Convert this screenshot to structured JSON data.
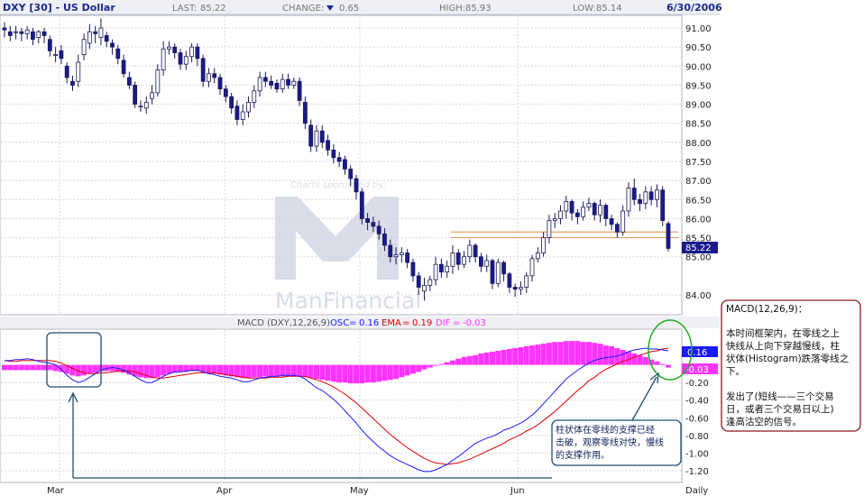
{
  "header": {
    "title": "DXY [30] - US Dollar",
    "last_label": "LAST:",
    "last_value": "85.22",
    "change_label": "CHANGE:",
    "change_value": "0.65",
    "high_label": "HIGH:",
    "high_value": "85.93",
    "low_label": "LOW:",
    "low_value": "85.14",
    "date": "6/30/2006"
  },
  "colors": {
    "up_candle": "#ffffff",
    "down_candle": "#1a1a8c",
    "histogram": "#ff33ff",
    "macd_line": "#1a1aff",
    "signal_line": "#dd0000",
    "support_line": "#e0a060",
    "note_border": "#8b1a1a",
    "callout_border": "#1f4e6e",
    "circle": "#22aa22"
  },
  "watermark": {
    "line1": "Charts sponsored by:",
    "line2": "ManFinancial"
  },
  "chart_data": [
    {
      "type": "candlestick",
      "title": "DXY [30] - US Dollar",
      "ylim": [
        83.6,
        91.35
      ],
      "y_ticks": [
        "91.00",
        "90.50",
        "90.00",
        "89.50",
        "89.00",
        "88.50",
        "88.00",
        "87.50",
        "87.00",
        "86.50",
        "86.00",
        "85.50",
        "85.00",
        "84.00"
      ],
      "x_labels": [
        "Mar",
        "Apr",
        "May",
        "Jun",
        "Daily"
      ],
      "last_price_label": "85.22",
      "support_levels": [
        85.65,
        85.5
      ],
      "close": [
        90.95,
        90.8,
        90.9,
        90.85,
        90.95,
        90.7,
        90.9,
        90.8,
        90.4,
        90.3,
        90.2,
        89.7,
        89.5,
        90.1,
        90.7,
        90.9,
        90.85,
        91.0,
        90.65,
        90.5,
        90.2,
        89.8,
        89.5,
        89.0,
        88.95,
        89.05,
        89.3,
        89.9,
        90.45,
        90.5,
        90.35,
        90.05,
        90.25,
        90.5,
        90.2,
        89.6,
        89.8,
        89.7,
        89.4,
        89.2,
        88.9,
        88.6,
        88.8,
        89.05,
        89.35,
        89.7,
        89.6,
        89.5,
        89.4,
        89.65,
        89.5,
        89.6,
        89.1,
        88.5,
        87.9,
        88.3,
        88.0,
        87.8,
        87.6,
        87.5,
        87.3,
        87.05,
        86.7,
        86.0,
        85.9,
        85.8,
        85.6,
        85.3,
        85.0,
        85.05,
        85.1,
        84.85,
        84.5,
        84.2,
        84.25,
        84.4,
        84.8,
        84.6,
        84.75,
        85.1,
        84.8,
        85.0,
        85.3,
        85.0,
        84.75,
        84.9,
        84.3,
        84.85,
        84.55,
        84.2,
        84.15,
        84.2,
        84.5,
        84.95,
        85.1,
        85.5,
        85.95,
        86.0,
        86.2,
        86.45,
        86.15,
        86.05,
        86.3,
        86.4,
        86.1,
        86.35,
        86.0,
        85.85,
        85.65,
        86.2,
        86.8,
        86.5,
        86.4,
        86.7,
        86.5,
        86.75,
        85.95,
        85.22
      ],
      "open": [
        91.0,
        90.9,
        90.9,
        90.9,
        90.85,
        90.9,
        90.75,
        90.9,
        90.7,
        90.3,
        90.4,
        90.0,
        89.6,
        89.6,
        90.3,
        90.6,
        90.9,
        90.75,
        90.8,
        90.6,
        90.45,
        90.15,
        89.7,
        89.5,
        88.95,
        88.9,
        89.15,
        89.3,
        89.9,
        90.45,
        90.5,
        90.35,
        90.05,
        90.25,
        90.5,
        90.2,
        89.6,
        89.8,
        89.7,
        89.4,
        89.2,
        88.95,
        88.6,
        88.8,
        89.05,
        89.35,
        89.7,
        89.6,
        89.55,
        89.4,
        89.65,
        89.5,
        89.6,
        89.05,
        88.45,
        87.9,
        88.3,
        88.05,
        87.8,
        87.6,
        87.55,
        87.3,
        87.05,
        86.7,
        86.0,
        85.9,
        85.8,
        85.6,
        85.3,
        85.0,
        85.05,
        85.1,
        84.85,
        84.5,
        84.1,
        84.25,
        84.4,
        84.8,
        84.6,
        84.75,
        85.1,
        84.8,
        85.0,
        85.3,
        85.0,
        84.75,
        84.9,
        84.3,
        84.85,
        84.55,
        84.2,
        84.15,
        84.2,
        84.5,
        84.95,
        85.1,
        85.5,
        85.95,
        86.0,
        86.2,
        86.45,
        86.15,
        86.05,
        86.3,
        86.4,
        86.1,
        86.35,
        86.0,
        85.85,
        85.65,
        86.2,
        86.8,
        86.5,
        86.4,
        86.7,
        86.5,
        86.75,
        85.87
      ],
      "high": [
        91.15,
        91.05,
        91.05,
        91.0,
        91.05,
        91.0,
        90.95,
        91.0,
        90.8,
        90.5,
        90.55,
        90.1,
        89.75,
        90.3,
        90.85,
        91.1,
        91.05,
        91.25,
        90.9,
        90.7,
        90.55,
        90.3,
        89.85,
        89.6,
        89.1,
        89.2,
        89.5,
        90.05,
        90.65,
        90.65,
        90.6,
        90.45,
        90.4,
        90.6,
        90.6,
        90.3,
        89.95,
        89.95,
        89.8,
        89.5,
        89.3,
        89.1,
        89.0,
        89.2,
        89.5,
        89.85,
        89.85,
        89.75,
        89.65,
        89.8,
        89.8,
        89.7,
        89.7,
        89.2,
        88.6,
        88.45,
        88.45,
        88.2,
        87.95,
        87.75,
        87.65,
        87.4,
        87.15,
        86.8,
        86.15,
        86.05,
        85.95,
        85.75,
        85.45,
        85.25,
        85.25,
        85.2,
        84.95,
        84.6,
        84.45,
        84.5,
        85.0,
        84.95,
        84.9,
        85.3,
        85.2,
        85.15,
        85.45,
        85.35,
        85.1,
        85.05,
        84.95,
        84.95,
        84.9,
        84.6,
        84.3,
        84.35,
        84.6,
        85.05,
        85.25,
        85.65,
        86.1,
        86.15,
        86.35,
        86.6,
        86.5,
        86.25,
        86.45,
        86.55,
        86.45,
        86.5,
        86.4,
        86.1,
        85.9,
        86.35,
        86.95,
        87.05,
        86.65,
        86.85,
        86.85,
        86.9,
        86.85,
        85.93
      ],
      "low": [
        90.75,
        90.65,
        90.7,
        90.65,
        90.7,
        90.55,
        90.6,
        90.6,
        90.25,
        90.1,
        90.05,
        89.55,
        89.35,
        89.45,
        90.15,
        90.45,
        90.6,
        90.55,
        90.5,
        90.3,
        90.05,
        89.7,
        89.4,
        88.9,
        88.8,
        88.75,
        89.0,
        89.2,
        89.75,
        90.3,
        90.2,
        89.9,
        89.9,
        90.1,
        90.0,
        89.45,
        89.45,
        89.55,
        89.25,
        89.05,
        88.75,
        88.45,
        88.45,
        88.65,
        88.9,
        89.2,
        89.45,
        89.4,
        89.3,
        89.3,
        89.4,
        89.4,
        88.95,
        88.35,
        87.75,
        87.75,
        87.85,
        87.65,
        87.45,
        87.35,
        87.15,
        86.85,
        86.5,
        85.85,
        85.7,
        85.65,
        85.45,
        85.15,
        84.85,
        84.8,
        84.85,
        84.7,
        84.35,
        84.0,
        83.85,
        84.1,
        84.25,
        84.45,
        84.45,
        84.55,
        84.65,
        84.7,
        84.85,
        84.85,
        84.6,
        84.6,
        84.15,
        84.2,
        84.35,
        84.05,
        83.95,
        84.0,
        84.05,
        84.35,
        84.85,
        85.0,
        85.35,
        85.75,
        85.85,
        86.0,
        85.95,
        85.85,
        85.95,
        86.2,
        85.95,
        85.9,
        85.8,
        85.7,
        85.5,
        85.55,
        86.05,
        86.35,
        86.2,
        86.25,
        86.35,
        86.3,
        85.8,
        85.14
      ]
    },
    {
      "type": "macd",
      "title": "MACD (DXY,12,26,9)",
      "legend": [
        {
          "name": "OSC",
          "value": "0.16",
          "color": "#1a1aff"
        },
        {
          "name": "EMA",
          "value": "0.19",
          "color": "#dd0000"
        },
        {
          "name": "DIF",
          "value": "-0.03",
          "color": "#ff33ff"
        }
      ],
      "ylim": [
        -1.3,
        0.27
      ],
      "y_ticks": [
        "-0.20",
        "-0.40",
        "-0.60",
        "-0.80",
        "-1.00",
        "-1.20"
      ],
      "value_labels": {
        "osc": "0.16",
        "dif": "-0.03"
      },
      "macd": [
        0.05,
        0.05,
        0.06,
        0.06,
        0.07,
        0.06,
        0.04,
        0.03,
        0.02,
        0.0,
        -0.05,
        -0.12,
        -0.17,
        -0.2,
        -0.18,
        -0.14,
        -0.1,
        -0.06,
        -0.04,
        -0.03,
        -0.04,
        -0.06,
        -0.09,
        -0.13,
        -0.17,
        -0.2,
        -0.2,
        -0.17,
        -0.13,
        -0.1,
        -0.08,
        -0.08,
        -0.07,
        -0.06,
        -0.06,
        -0.08,
        -0.1,
        -0.11,
        -0.13,
        -0.14,
        -0.15,
        -0.17,
        -0.19,
        -0.19,
        -0.17,
        -0.15,
        -0.14,
        -0.13,
        -0.13,
        -0.12,
        -0.12,
        -0.12,
        -0.13,
        -0.16,
        -0.21,
        -0.26,
        -0.29,
        -0.34,
        -0.39,
        -0.45,
        -0.52,
        -0.59,
        -0.66,
        -0.74,
        -0.81,
        -0.87,
        -0.93,
        -0.98,
        -1.03,
        -1.07,
        -1.1,
        -1.13,
        -1.16,
        -1.19,
        -1.21,
        -1.21,
        -1.19,
        -1.16,
        -1.13,
        -1.08,
        -1.04,
        -0.99,
        -0.94,
        -0.89,
        -0.86,
        -0.83,
        -0.81,
        -0.78,
        -0.74,
        -0.72,
        -0.69,
        -0.66,
        -0.62,
        -0.57,
        -0.51,
        -0.44,
        -0.37,
        -0.3,
        -0.23,
        -0.16,
        -0.11,
        -0.06,
        -0.02,
        0.02,
        0.05,
        0.07,
        0.08,
        0.09,
        0.1,
        0.12,
        0.15,
        0.17,
        0.18,
        0.19,
        0.18,
        0.18,
        0.17,
        0.16
      ],
      "signal": [
        0.05,
        0.04,
        0.04,
        0.05,
        0.05,
        0.05,
        0.05,
        0.05,
        0.05,
        0.04,
        0.02,
        -0.01,
        -0.04,
        -0.07,
        -0.09,
        -0.1,
        -0.1,
        -0.09,
        -0.09,
        -0.08,
        -0.07,
        -0.07,
        -0.07,
        -0.08,
        -0.1,
        -0.12,
        -0.14,
        -0.15,
        -0.15,
        -0.14,
        -0.13,
        -0.12,
        -0.11,
        -0.1,
        -0.09,
        -0.09,
        -0.09,
        -0.09,
        -0.1,
        -0.11,
        -0.12,
        -0.13,
        -0.14,
        -0.15,
        -0.15,
        -0.15,
        -0.15,
        -0.14,
        -0.14,
        -0.14,
        -0.13,
        -0.13,
        -0.13,
        -0.13,
        -0.15,
        -0.17,
        -0.19,
        -0.22,
        -0.25,
        -0.29,
        -0.33,
        -0.38,
        -0.43,
        -0.49,
        -0.55,
        -0.61,
        -0.67,
        -0.73,
        -0.79,
        -0.84,
        -0.89,
        -0.94,
        -0.98,
        -1.02,
        -1.06,
        -1.09,
        -1.11,
        -1.12,
        -1.13,
        -1.12,
        -1.11,
        -1.09,
        -1.07,
        -1.04,
        -1.01,
        -0.98,
        -0.95,
        -0.92,
        -0.89,
        -0.85,
        -0.82,
        -0.79,
        -0.75,
        -0.72,
        -0.68,
        -0.63,
        -0.58,
        -0.53,
        -0.47,
        -0.41,
        -0.35,
        -0.29,
        -0.24,
        -0.18,
        -0.14,
        -0.09,
        -0.05,
        -0.02,
        0.01,
        0.04,
        0.06,
        0.09,
        0.11,
        0.13,
        0.15,
        0.16,
        0.18,
        0.19
      ],
      "histogram": [
        -0.06,
        -0.06,
        -0.06,
        -0.06,
        -0.06,
        -0.06,
        -0.06,
        -0.06,
        -0.06,
        -0.07,
        -0.08,
        -0.1,
        -0.12,
        -0.13,
        -0.12,
        -0.1,
        -0.09,
        -0.07,
        -0.07,
        -0.07,
        -0.08,
        -0.09,
        -0.11,
        -0.13,
        -0.14,
        -0.15,
        -0.15,
        -0.14,
        -0.12,
        -0.1,
        -0.09,
        -0.08,
        -0.08,
        -0.07,
        -0.07,
        -0.08,
        -0.09,
        -0.1,
        -0.11,
        -0.12,
        -0.13,
        -0.14,
        -0.15,
        -0.15,
        -0.14,
        -0.14,
        -0.13,
        -0.13,
        -0.13,
        -0.13,
        -0.13,
        -0.13,
        -0.13,
        -0.14,
        -0.15,
        -0.16,
        -0.17,
        -0.18,
        -0.19,
        -0.2,
        -0.2,
        -0.21,
        -0.21,
        -0.21,
        -0.2,
        -0.2,
        -0.19,
        -0.18,
        -0.17,
        -0.16,
        -0.14,
        -0.12,
        -0.1,
        -0.08,
        -0.05,
        -0.03,
        -0.01,
        0.01,
        0.03,
        0.05,
        0.07,
        0.09,
        0.1,
        0.11,
        0.13,
        0.14,
        0.15,
        0.16,
        0.17,
        0.18,
        0.19,
        0.2,
        0.21,
        0.22,
        0.23,
        0.24,
        0.25,
        0.26,
        0.26,
        0.27,
        0.27,
        0.27,
        0.26,
        0.26,
        0.25,
        0.24,
        0.22,
        0.21,
        0.19,
        0.17,
        0.15,
        0.13,
        0.11,
        0.09,
        0.06,
        0.04,
        0.01,
        -0.03
      ]
    }
  ],
  "annotations": {
    "note_lines": [
      "MACD(12,26,9)：",
      "",
      "本时间框架内，在零线之上",
      "快线从上向下穿越慢线，柱",
      "状体(Histogram)跌落零线之",
      "下。",
      "",
      "发出了(短线——三个交易",
      "日，或者三个交易日以上)",
      "逢高沽空的信号。"
    ],
    "callout_lines": [
      "柱状体在零线的支撑已经",
      "击破，观察零线对快，慢线",
      "的支撑作用。"
    ]
  }
}
